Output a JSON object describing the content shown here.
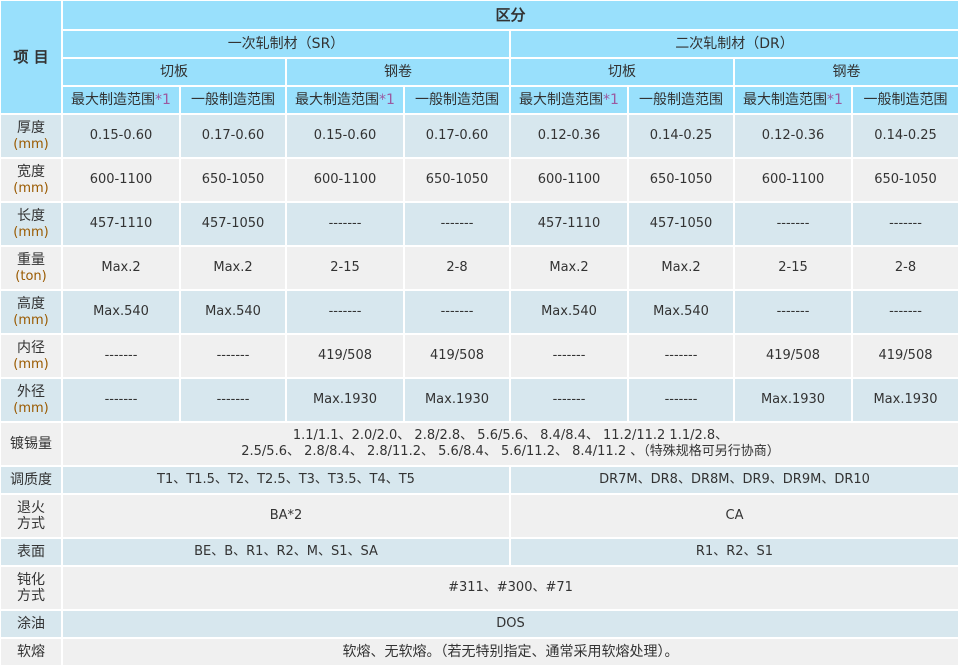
{
  "header": {
    "item": "项 目",
    "section": "区分",
    "sr": "一次轧制材（SR）",
    "dr": "二次轧制材（DR）",
    "cut": "切板",
    "coil": "钢卷",
    "max": "最大制造范围",
    "max_note": "*1",
    "general": "一般制造范围"
  },
  "rows": [
    {
      "label": "厚度",
      "unit": "(mm)",
      "values": [
        "0.15-0.60",
        "0.17-0.60",
        "0.15-0.60",
        "0.17-0.60",
        "0.12-0.36",
        "0.14-0.25",
        "0.12-0.36",
        "0.14-0.25"
      ]
    },
    {
      "label": "宽度",
      "unit": "(mm)",
      "values": [
        "600-1100",
        "650-1050",
        "600-1100",
        "650-1050",
        "600-1100",
        "650-1050",
        "600-1100",
        "650-1050"
      ]
    },
    {
      "label": "长度",
      "unit": "(mm)",
      "values": [
        "457-1110",
        "457-1050",
        "-------",
        "-------",
        "457-1110",
        "457-1050",
        "-------",
        "-------"
      ]
    },
    {
      "label": "重量",
      "unit": "(ton)",
      "values": [
        "Max.2",
        "Max.2",
        "2-15",
        "2-8",
        "Max.2",
        "Max.2",
        "2-15",
        "2-8"
      ]
    },
    {
      "label": "高度",
      "unit": "(mm)",
      "values": [
        "Max.540",
        "Max.540",
        "-------",
        "-------",
        "Max.540",
        "Max.540",
        "-------",
        "-------"
      ]
    },
    {
      "label": "内径",
      "unit": "(mm)",
      "values": [
        "-------",
        "-------",
        "419/508",
        "419/508",
        "-------",
        "-------",
        "419/508",
        "419/508"
      ]
    },
    {
      "label": "外径",
      "unit": "(mm)",
      "values": [
        "-------",
        "-------",
        "Max.1930",
        "Max.1930",
        "-------",
        "-------",
        "Max.1930",
        "Max.1930"
      ]
    }
  ],
  "tin": {
    "label": "镀锡量",
    "line1": "1.1/1.1、2.0/2.0、 2.8/2.8、 5.6/5.6、 8.4/8.4、 11.2/11.2 1.1/2.8、",
    "line2": "2.5/5.6、 2.8/8.4、 2.8/11.2、 5.6/8.4、 5.6/11.2、 8.4/11.2 、（特殊规格可另行协商）"
  },
  "temper": {
    "label": "调质度",
    "sr": "T1、T1.5、T2、T2.5、T3、T3.5、T4、T5",
    "dr": "DR7M、DR8、DR8M、DR9、DR9M、DR10"
  },
  "anneal": {
    "label1": "退火",
    "label2": "方式",
    "sr": "BA*2",
    "dr": "CA"
  },
  "surface": {
    "label": "表面",
    "sr": "BE、B、R1、R2、M、S1、SA",
    "dr": "R1、R2、S1"
  },
  "passivation": {
    "label1": "钝化",
    "label2": "方式",
    "value": "#311、#300、#71"
  },
  "oil": {
    "label": "涂油",
    "value": "DOS"
  },
  "reflow": {
    "label": "软熔",
    "value": "软熔、无软熔。（若无特别指定、通常采用软熔处理）。"
  }
}
